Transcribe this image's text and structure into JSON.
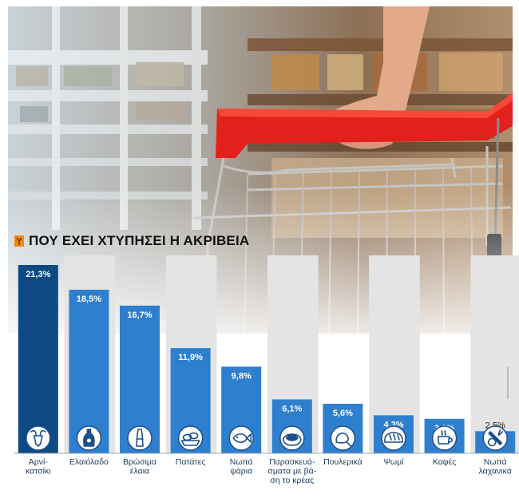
{
  "header": {
    "title": "ΠΟΥ ΕΧΕΙ ΧΤΥΠΗΣΕΙ Η ΑΚΡΙΒΕΙΑ"
  },
  "colors": {
    "dark_bar": "#0d4a84",
    "bar": "#2f7fcf",
    "band": "#e4e4e4",
    "title_mark": "#f08a16",
    "label": "#1e3a5c"
  },
  "chart_data": {
    "type": "bar",
    "unit": "%",
    "categories": [
      [
        "Αρνί-",
        "κατσίκι"
      ],
      [
        "Ελαιόλαδο"
      ],
      [
        "Βρώσιμα",
        "έλαια"
      ],
      [
        "Πατάτες"
      ],
      [
        "Νωπά",
        "ψάρια"
      ],
      [
        "Παρασκευά-",
        "σματα με βά-",
        "ση το κρέας"
      ],
      [
        "Πουλερικά"
      ],
      [
        "Ψωμί"
      ],
      [
        "Καφές"
      ],
      [
        "Νωπά",
        "λαχανικά"
      ]
    ],
    "values": [
      21.3,
      18.5,
      16.7,
      11.9,
      9.8,
      6.1,
      5.6,
      4.3,
      3.9,
      2.5
    ],
    "value_labels": [
      "21,3%",
      "18,5%",
      "16,7%",
      "11,9%",
      "9,8%",
      "6,1%",
      "5,6%",
      "4,3%",
      "3,9%",
      "2,5%"
    ],
    "icons": [
      "goat-head-icon",
      "oil-bottle-icon",
      "olive-jar-icon",
      "potatoes-icon",
      "fish-icon",
      "meat-products-icon",
      "poultry-icon",
      "bread-icon",
      "coffee-cup-icon",
      "vegetables-icon"
    ],
    "ylim": [
      0,
      22
    ],
    "grid": false,
    "legend": "none"
  }
}
